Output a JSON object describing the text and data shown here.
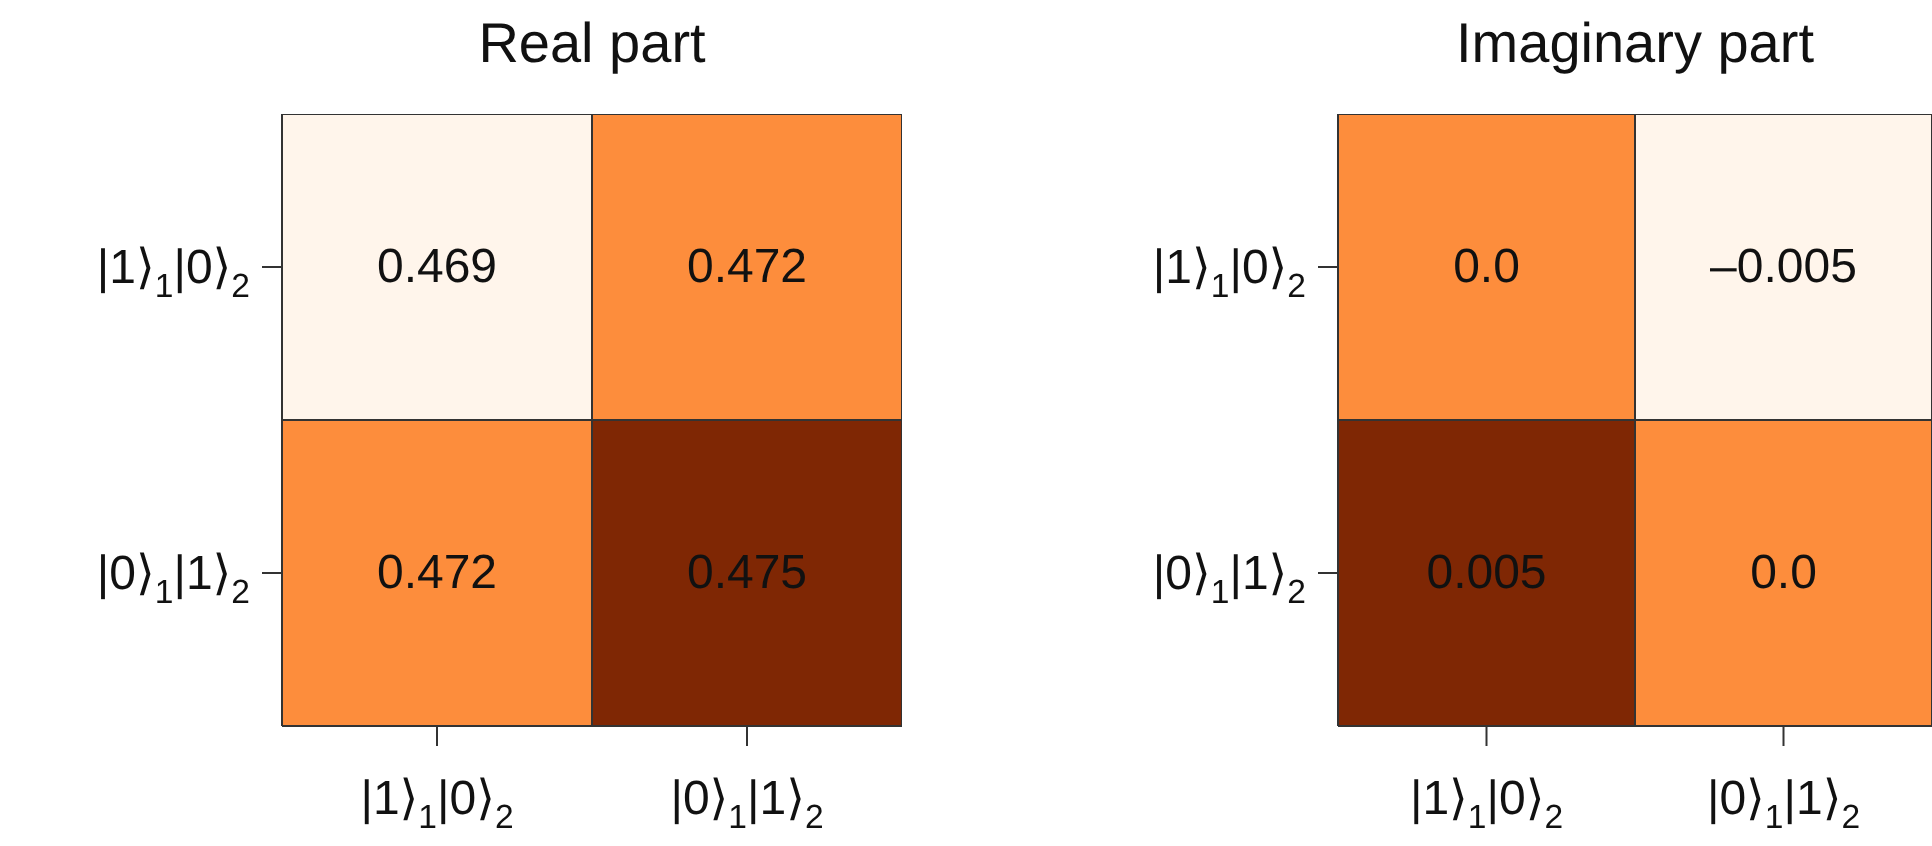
{
  "chart_data": [
    {
      "type": "heatmap",
      "title": "Real part",
      "categories": [
        "|1⟩$_{1}$|0⟩$_{2}$",
        "|0⟩$_{1}$|1⟩$_{2}$"
      ],
      "y_categories": [
        "|1⟩$_{1}$|0⟩$_{2}$",
        "|0⟩$_{1}$|1⟩$_{2}$"
      ],
      "cells": [
        [
          0.469,
          0.472
        ],
        [
          0.472,
          0.475
        ]
      ],
      "data_labels": true
    },
    {
      "type": "heatmap",
      "title": "Imaginary part",
      "categories": [
        "|1⟩$_{1}$|0⟩$_{2}$",
        "|0⟩$_{1}$|1⟩$_{2}$"
      ],
      "y_categories": [
        "|1⟩$_{1}$|0⟩$_{2}$",
        "|0⟩$_{1}$|1⟩$_{2}$"
      ],
      "cells": [
        [
          0.0,
          -0.005
        ],
        [
          0.005,
          0.0
        ]
      ],
      "cell_labels": [
        [
          "0.0",
          "–0.005"
        ],
        [
          "0.005",
          "0.0"
        ]
      ]
    }
  ]
}
